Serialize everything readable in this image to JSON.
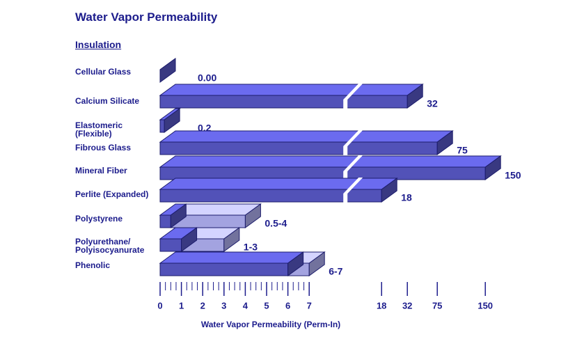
{
  "chart_data": {
    "type": "bar",
    "title": "Water Vapor Permeability",
    "subtitle": "Insulation",
    "x_label": "Water Vapor Permeability (Perm-In)",
    "categories": [
      "Cellular Glass",
      "Calcium Silicate",
      "Elastomeric\n(Flexible)",
      "Fibrous Glass",
      "Mineral Fiber",
      "Perlite (Expanded)",
      "Polystyrene",
      "Polyurethane/\nPolyisocyanurate",
      "Phenolic"
    ],
    "low": [
      0,
      32,
      0.2,
      75,
      150,
      18,
      0.5,
      1,
      6
    ],
    "high": [
      0,
      32,
      0.2,
      75,
      150,
      18,
      4,
      3,
      7
    ],
    "value_labels": [
      "0.00",
      "32",
      "0.2",
      "75",
      "150",
      "18",
      "0.5-4",
      "1-3",
      "6-7"
    ],
    "color": "#5252b8",
    "range_color": "#a3a3e0",
    "xlim": [
      0,
      150
    ],
    "xticks": [
      0,
      1,
      2,
      3,
      4,
      5,
      6,
      7,
      18,
      32,
      75,
      150
    ],
    "broken_axis": true,
    "grid": false
  }
}
